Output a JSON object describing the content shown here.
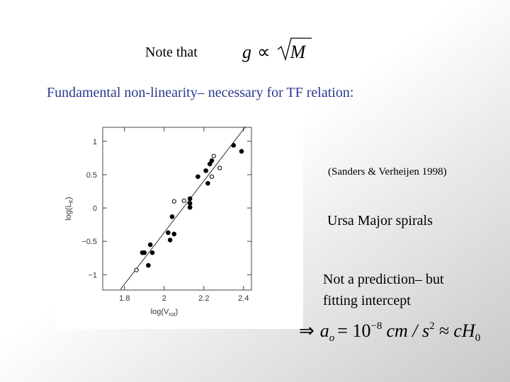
{
  "slide": {
    "note": "Note that",
    "eq1": {
      "g": "g",
      "prop": "∝",
      "M": "M"
    },
    "heading": "Fundamental non-linearity– necessary for TF relation:",
    "citation": "(Sanders & Verheijen 1998)",
    "sample": "Ursa Major spirals",
    "remark": [
      "Not a prediction– but",
      "fitting intercept"
    ],
    "eq2": {
      "arrow": "⇒",
      "a": "a",
      "a_sub": "o",
      "eq": "= 10",
      "exp": "−8",
      "units": "cm / s",
      "units_exp": "2",
      "approx": "≈ cH",
      "h_sub": "0"
    }
  },
  "chart_data": {
    "type": "scatter",
    "xlabel": {
      "main": "log(V",
      "sub": "rot",
      "end": ")"
    },
    "ylabel": {
      "main": "log(L",
      "sub": "K",
      "end": ")"
    },
    "xlim": [
      1.69,
      2.44
    ],
    "ylim": [
      -1.23,
      1.21
    ],
    "xticks": [
      1.8,
      2,
      2.2,
      2.4
    ],
    "yticks": [
      {
        "value": -1,
        "label": "−1"
      },
      {
        "value": -0.5,
        "label": "−0.5"
      },
      0,
      0.5,
      1
    ],
    "series": [
      {
        "marker": "filled",
        "color": "#000000",
        "x": [
          2.35,
          2.39,
          2.24,
          2.23,
          2.21,
          2.17,
          2.22,
          2.13,
          2.13,
          2.13,
          2.04,
          2.02,
          2.05,
          2.03,
          1.93,
          1.9,
          1.89,
          1.94,
          1.92
        ],
        "y": [
          0.94,
          0.85,
          0.71,
          0.66,
          0.56,
          0.47,
          0.37,
          0.14,
          0.07,
          0.01,
          -0.13,
          -0.37,
          -0.39,
          -0.48,
          -0.55,
          -0.67,
          -0.67,
          -0.67,
          -0.86
        ]
      },
      {
        "marker": "open",
        "color": "#000000",
        "x": [
          2.25,
          2.28,
          2.24,
          2.1,
          2.05,
          1.86
        ],
        "y": [
          0.78,
          0.6,
          0.47,
          0.11,
          0.1,
          -0.93
        ]
      }
    ],
    "fit_line": {
      "x": [
        1.78,
        2.41
      ],
      "y": [
        -1.22,
        1.22
      ]
    }
  }
}
